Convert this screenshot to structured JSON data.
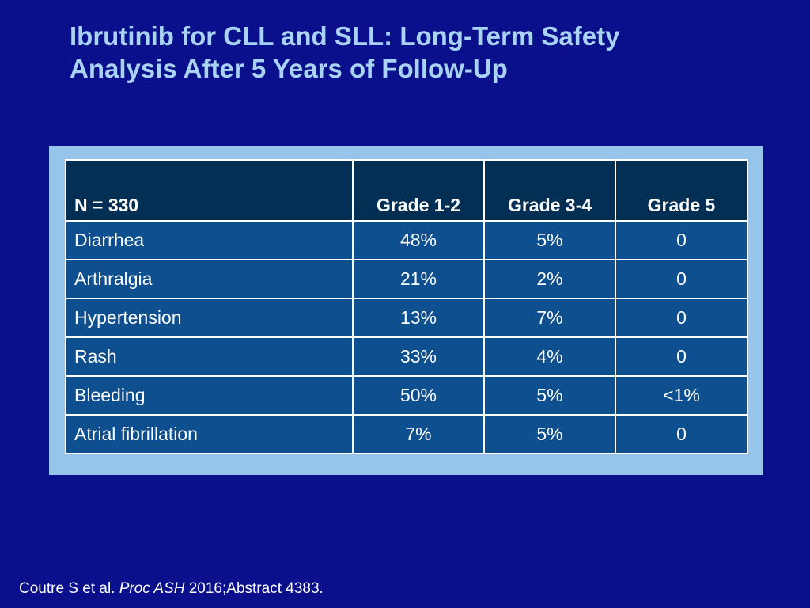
{
  "slide": {
    "title_line1": "Ibrutinib for CLL and SLL: Long-Term Safety",
    "title_line2": "Analysis After 5 Years of Follow-Up"
  },
  "table": {
    "headers": [
      "N = 330",
      "Grade 1-2",
      "Grade 3-4",
      "Grade 5"
    ],
    "rows": [
      [
        "Diarrhea",
        "48%",
        "5%",
        "0"
      ],
      [
        "Arthralgia",
        "21%",
        "2%",
        "0"
      ],
      [
        "Hypertension",
        "13%",
        "7%",
        "0"
      ],
      [
        "Rash",
        "33%",
        "4%",
        "0"
      ],
      [
        "Bleeding",
        "50%",
        "5%",
        "<1%"
      ],
      [
        "Atrial fibrillation",
        "7%",
        "5%",
        "0"
      ]
    ]
  },
  "citation": {
    "authors": "Coutre S et al.",
    "journal": "Proc ASH",
    "details": "2016;Abstract 4383."
  },
  "colors": {
    "background": "#0a0f8c",
    "title": "#a9d3f2",
    "frame": "#97c4ea",
    "header_cell": "#042f55",
    "body_cell": "#0e4f8f"
  }
}
